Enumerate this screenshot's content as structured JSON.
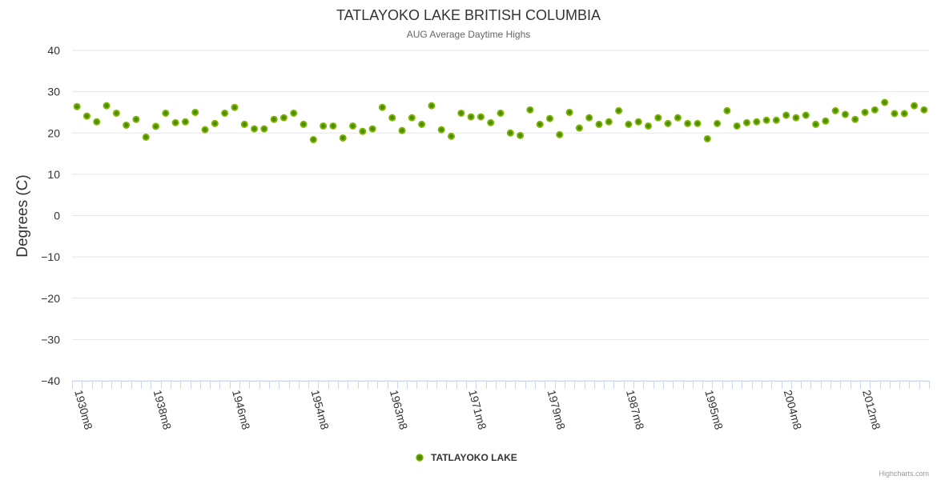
{
  "chart_data": {
    "type": "scatter",
    "title": "TATLAYOKO LAKE BRITISH COLUMBIA",
    "subtitle": "AUG Average Daytime Highs",
    "xlabel": "",
    "ylabel": "Degrees (C)",
    "ylim": [
      -40,
      40
    ],
    "y_ticks": [
      40,
      30,
      20,
      10,
      0,
      -10,
      -20,
      -30,
      -40
    ],
    "y_tick_labels": [
      "40",
      "30",
      "20",
      "10",
      "0",
      "−10",
      "−20",
      "−30",
      "−40"
    ],
    "grid": true,
    "legend_position": "bottom-center",
    "x_tick_labels": [
      {
        "index": 0,
        "label": "1930m8"
      },
      {
        "index": 8,
        "label": "1938m8"
      },
      {
        "index": 16,
        "label": "1946m8"
      },
      {
        "index": 24,
        "label": "1954m8"
      },
      {
        "index": 32,
        "label": "1963m8"
      },
      {
        "index": 40,
        "label": "1971m8"
      },
      {
        "index": 48,
        "label": "1979m8"
      },
      {
        "index": 56,
        "label": "1987m8"
      },
      {
        "index": 64,
        "label": "1995m8"
      },
      {
        "index": 72,
        "label": "2004m8"
      },
      {
        "index": 80,
        "label": "2012m8"
      }
    ],
    "series": [
      {
        "name": "TATLAYOKO LAKE",
        "color": "#7cb500",
        "values": [
          26.4,
          24.1,
          22.7,
          26.6,
          24.8,
          21.9,
          23.3,
          19.0,
          21.6,
          24.8,
          22.5,
          22.7,
          25.0,
          20.8,
          22.3,
          24.8,
          26.2,
          22.1,
          21.0,
          21.0,
          23.3,
          23.7,
          24.8,
          22.1,
          18.4,
          21.7,
          21.7,
          18.8,
          21.7,
          20.4,
          21.0,
          26.2,
          23.7,
          20.6,
          23.7,
          22.1,
          26.6,
          20.8,
          19.2,
          24.8,
          23.9,
          23.9,
          22.5,
          24.8,
          20.0,
          19.4,
          25.6,
          22.1,
          23.5,
          19.6,
          25.0,
          21.2,
          23.7,
          22.1,
          22.7,
          25.4,
          22.1,
          22.7,
          21.7,
          23.7,
          22.3,
          23.7,
          22.3,
          22.3,
          18.6,
          22.3,
          25.4,
          21.7,
          22.5,
          22.7,
          23.1,
          23.1,
          24.3,
          23.7,
          24.3,
          22.1,
          22.9,
          25.4,
          24.5,
          23.3,
          25.0,
          25.6,
          27.4,
          24.7,
          24.7,
          26.6,
          25.6
        ]
      }
    ]
  },
  "credits": "Highcharts.com"
}
